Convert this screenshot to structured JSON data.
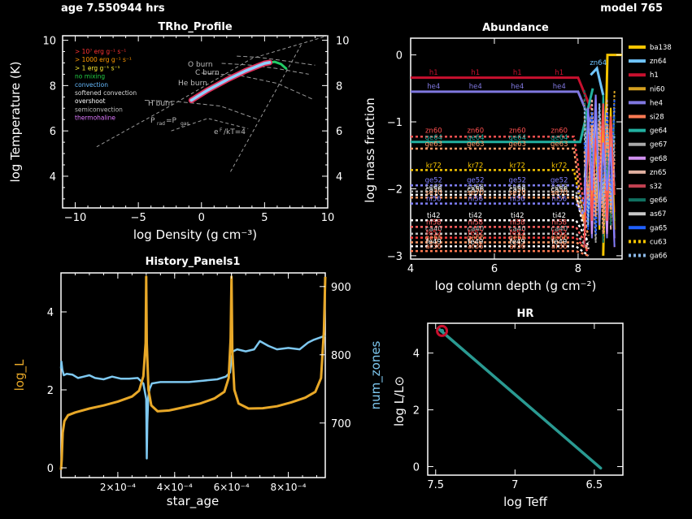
{
  "header": {
    "age_text": "age 7.550944 hrs",
    "model_text": "model 765"
  },
  "colors": {
    "bg": "#000000",
    "fg": "#ffffff",
    "gold": "#e8a828",
    "lightblue": "#7ec8f0",
    "teal": "#2a9a92",
    "crimson": "#c8102e"
  },
  "panels": {
    "trho": {
      "title": "TRho_Profile",
      "xlabel": "log Density (g cm⁻³)",
      "ylabel": "log Temperature (K)",
      "xticks": [
        "−10",
        "−5",
        "0",
        "5",
        "10"
      ],
      "yticks_left": [
        "4",
        "6",
        "8",
        "10"
      ],
      "yticks_right": [
        "4",
        "6",
        "8",
        "10"
      ],
      "legend": [
        {
          "text": "> 10⁷ erg g⁻¹ s⁻¹",
          "color": "#ff3333"
        },
        {
          "text": "> 1000 erg g⁻¹ s⁻¹",
          "color": "#ff9900"
        },
        {
          "text": "> 1 erg g⁻¹ s⁻¹",
          "color": "#ffee33"
        },
        {
          "text": "no mixing",
          "color": "#22cc44"
        },
        {
          "text": "convection",
          "color": "#66bbff"
        },
        {
          "text": "softened convection",
          "color": "#dddddd"
        },
        {
          "text": "overshoot",
          "color": "#ffffff"
        },
        {
          "text": "semiconvection",
          "color": "#bbbbbb"
        },
        {
          "text": "thermohaline",
          "color": "#dd77ff"
        }
      ],
      "burn_labels": [
        "O burn",
        "C burn",
        "He burn",
        "H burn"
      ],
      "misc_labels": [
        "P",
        "rad",
        "=P",
        "gas",
        "e",
        "F",
        "/kT=4"
      ]
    },
    "abund": {
      "title": "Abundance",
      "xlabel": "log column depth (g cm⁻²)",
      "ylabel": "log mass fraction",
      "xticks": [
        "4",
        "6",
        "8"
      ],
      "yticks": [
        "0",
        "−1",
        "−2",
        "−3"
      ],
      "legend": [
        {
          "name": "ba138",
          "color": "#f5c400",
          "style": "solid"
        },
        {
          "name": "zn64",
          "color": "#6fc4ff",
          "style": "solid"
        },
        {
          "name": "h1",
          "color": "#c8102e",
          "style": "solid"
        },
        {
          "name": "ni60",
          "color": "#d4a020",
          "style": "solid"
        },
        {
          "name": "he4",
          "color": "#8078e0",
          "style": "solid"
        },
        {
          "name": "si28",
          "color": "#ff7b53",
          "style": "solid"
        },
        {
          "name": "ge64",
          "color": "#22b0a0",
          "style": "solid"
        },
        {
          "name": "ge67",
          "color": "#a8a8a8",
          "style": "solid"
        },
        {
          "name": "ge68",
          "color": "#d090f0",
          "style": "solid"
        },
        {
          "name": "zn65",
          "color": "#e0b0a0",
          "style": "solid"
        },
        {
          "name": "s32",
          "color": "#c04050",
          "style": "solid"
        },
        {
          "name": "ge66",
          "color": "#107060",
          "style": "solid"
        },
        {
          "name": "as67",
          "color": "#c8c8c8",
          "style": "solid"
        },
        {
          "name": "ga65",
          "color": "#2060ff",
          "style": "solid"
        },
        {
          "name": "cu63",
          "color": "#f5c400",
          "style": "dotted"
        },
        {
          "name": "ga66",
          "color": "#8ab8e8",
          "style": "dotted"
        }
      ],
      "line_labels": [
        {
          "text": "h1",
          "y": -0.33,
          "color": "#c8102e"
        },
        {
          "text": "he4",
          "y": -0.54,
          "color": "#8078e0"
        },
        {
          "text": "zn60",
          "y": -1.2,
          "color": "#ff5050"
        },
        {
          "text": "ge64",
          "y": -1.3,
          "color": "#22b0a0"
        },
        {
          "text": "ge63",
          "y": -1.4,
          "color": "#ff9966"
        },
        {
          "text": "kr72",
          "y": -1.72,
          "color": "#f5c400"
        },
        {
          "text": "ge52",
          "y": -1.94,
          "color": "#8080ff"
        },
        {
          "text": "se68",
          "y": -2.04,
          "color": "#aaaaaa"
        },
        {
          "text": "ca56",
          "y": -2.08,
          "color": "#ffffff"
        },
        {
          "text": "se70",
          "y": -2.13,
          "color": "#ff9966"
        },
        {
          "text": "ni56",
          "y": -2.22,
          "color": "#8080ff"
        },
        {
          "text": "ti42",
          "y": -2.47,
          "color": "#ffffff"
        },
        {
          "text": "ni58",
          "y": -2.57,
          "color": "#ff6060"
        },
        {
          "text": "ca40",
          "y": -2.67,
          "color": "#c0c0c0"
        },
        {
          "text": "fe52",
          "y": -2.73,
          "color": "#ff4040"
        },
        {
          "text": "ge66",
          "y": -2.8,
          "color": "#ff9966"
        },
        {
          "text": "fe49",
          "y": -2.86,
          "color": "#ffffff"
        },
        {
          "text": "ar36",
          "y": -2.93,
          "color": "#ff7b53"
        }
      ],
      "label_x": [
        4.55,
        5.55,
        6.55,
        7.55
      ],
      "right_label": "zn64"
    },
    "history": {
      "title": "History_Panels1",
      "xlabel": "star_age",
      "ylabel_left": "log_L",
      "ylabel_right": "num_zones",
      "xticks": [
        "2×10⁻⁴",
        "4×10⁻⁴",
        "6×10⁻⁴",
        "8×10⁻⁴"
      ],
      "yticks_left": [
        "0",
        "2",
        "4"
      ],
      "yticks_right": [
        "700",
        "800",
        "900"
      ]
    },
    "hr": {
      "title": "HR",
      "xlabel": "log Teff",
      "ylabel": "log L/L⊙",
      "xticks": [
        "7.5",
        "7",
        "6.5"
      ],
      "yticks": [
        "0",
        "2",
        "4"
      ]
    }
  },
  "chart_data": [
    {
      "type": "line",
      "title": "TRho_Profile",
      "xlabel": "log Density (g cm⁻³)",
      "ylabel": "log Temperature (K)",
      "xlim": [
        -11,
        10
      ],
      "ylim": [
        2.6,
        10.2
      ],
      "series": [
        {
          "x": [
            -0.8,
            0.5,
            2.0,
            3.5,
            5.0,
            5.4
          ],
          "y": [
            7.35,
            7.8,
            8.25,
            8.65,
            8.98,
            9.02
          ]
        },
        {
          "x": [
            5.2,
            5.8,
            6.3,
            6.7
          ],
          "y": [
            9.0,
            9.05,
            8.95,
            8.75
          ]
        }
      ],
      "burn_lines": [
        {
          "label": "O burn",
          "x": [
            2.8,
            4.5,
            6.5,
            9.0
          ],
          "y": [
            9.3,
            9.25,
            9.1,
            8.9
          ]
        },
        {
          "label": "C burn",
          "x": [
            1.6,
            4.0,
            6.0,
            8.5
          ],
          "y": [
            8.98,
            8.9,
            8.75,
            8.5
          ]
        },
        {
          "label": "He burn",
          "x": [
            0.0,
            3.0,
            6.0,
            8.8
          ],
          "y": [
            8.55,
            8.45,
            8.1,
            7.4
          ]
        },
        {
          "label": "H burn",
          "x": [
            -4.5,
            -2.0,
            1.5,
            4.5
          ],
          "y": [
            7.35,
            7.3,
            7.1,
            6.5
          ]
        }
      ],
      "reference_lines": [
        {
          "label": "Prad=Pgas",
          "x": [
            -8.3,
            -2.0,
            4.0,
            10.0
          ],
          "y": [
            5.3,
            7.25,
            9.2,
            10.2
          ]
        },
        {
          "label": "eF/kT=4",
          "x": [
            2.3,
            5.0,
            7.9
          ],
          "y": [
            4.2,
            6.9,
            9.8
          ]
        },
        {
          "label": "",
          "x": [
            -2.4,
            0.5,
            3.7
          ],
          "y": [
            6.0,
            6.55,
            6.1
          ]
        }
      ]
    },
    {
      "type": "line",
      "title": "Abundance",
      "xlabel": "log column depth (g cm⁻²)",
      "ylabel": "log mass fraction",
      "xlim": [
        4.0,
        9.05
      ],
      "ylim": [
        -3.05,
        0.25
      ],
      "series": [
        {
          "name": "h1",
          "level": -0.34,
          "end_x": 8.0,
          "tail_y": -0.8
        },
        {
          "name": "he4",
          "level": -0.55,
          "end_x": 8.0,
          "tail_y": -1.0
        },
        {
          "name": "zn60",
          "level": -1.22,
          "end_x": 7.9,
          "tail_y": -2.5
        },
        {
          "name": "ge64",
          "level": -1.3,
          "end_x": 8.05,
          "tail_y": -0.5
        },
        {
          "name": "ge63",
          "level": -1.4,
          "end_x": 7.9,
          "tail_y": -2.8
        },
        {
          "name": "kr72",
          "level": -1.72,
          "end_x": 7.9,
          "tail_y": -2.6
        },
        {
          "name": "ge52",
          "level": -1.95,
          "end_x": 7.95,
          "tail_y": -2.4
        },
        {
          "name": "se68",
          "level": -2.04,
          "end_x": 7.95,
          "tail_y": -2.6
        },
        {
          "name": "ca56",
          "level": -2.09,
          "end_x": 7.95,
          "tail_y": -2.9
        },
        {
          "name": "se70",
          "level": -2.13,
          "end_x": 7.95,
          "tail_y": -2.7
        },
        {
          "name": "ni56",
          "level": -2.22,
          "end_x": 7.95,
          "tail_y": -2.5
        },
        {
          "name": "ti42",
          "level": -2.47,
          "end_x": 7.95,
          "tail_y": -2.8
        },
        {
          "name": "ni58",
          "level": -2.57,
          "end_x": 7.95,
          "tail_y": -2.9
        },
        {
          "name": "ca40",
          "level": -2.67,
          "end_x": 7.95,
          "tail_y": -2.9
        },
        {
          "name": "fe52",
          "level": -2.73,
          "end_x": 7.95,
          "tail_y": -2.95
        },
        {
          "name": "ge66",
          "level": -2.8,
          "end_x": 7.95,
          "tail_y": -2.9
        },
        {
          "name": "fe49",
          "level": -2.86,
          "end_x": 7.95,
          "tail_y": -3.0
        },
        {
          "name": "ar36",
          "level": -2.93,
          "end_x": 7.95,
          "tail_y": -3.0
        },
        {
          "name": "zn64",
          "level": null,
          "spike_x": [
            8.3,
            8.45,
            8.6
          ],
          "spike_y": [
            -0.3,
            -0.2,
            -0.6
          ]
        },
        {
          "name": "ba138",
          "level": null,
          "spike_x": [
            8.6,
            8.7,
            9.05
          ],
          "spike_y": [
            -3.0,
            0.0,
            0.0
          ]
        }
      ]
    },
    {
      "type": "line",
      "title": "History_Panels1",
      "xlabel": "star_age",
      "xlim": [
        0.0,
        0.00093
      ],
      "series": [
        {
          "name": "log_L",
          "axis": "left",
          "ylim": [
            -0.25,
            5.0
          ],
          "x": [
            0.0,
            2.5e-06,
            6e-06,
            1.2e-05,
            2.5e-05,
            5e-05,
            0.0001,
            0.00015,
            0.0002,
            0.00025,
            0.000275,
            0.00029,
            0.000298,
            0.0003,
            0.000302,
            0.000308,
            0.000318,
            0.00034,
            0.00038,
            0.00043,
            0.00049,
            0.00054,
            0.000575,
            0.00059,
            0.000597,
            0.0006,
            0.000603,
            0.00061,
            0.000625,
            0.00066,
            0.00071,
            0.00076,
            0.00081,
            0.00086,
            0.000895,
            0.000915,
            0.000925,
            0.00093
          ],
          "y": [
            -0.05,
            0.2,
            0.9,
            1.2,
            1.35,
            1.42,
            1.52,
            1.6,
            1.7,
            1.83,
            1.98,
            2.35,
            3.2,
            4.9,
            3.2,
            2.0,
            1.6,
            1.45,
            1.47,
            1.55,
            1.65,
            1.78,
            1.95,
            2.3,
            3.3,
            4.9,
            3.0,
            2.0,
            1.65,
            1.52,
            1.53,
            1.58,
            1.68,
            1.8,
            1.95,
            2.3,
            3.5,
            4.9
          ]
        },
        {
          "name": "num_zones",
          "axis": "right",
          "ylim": [
            620,
            920
          ],
          "x": [
            0.0,
            1.5e-06,
            5e-06,
            1e-05,
            2e-05,
            4e-05,
            6e-05,
            8e-05,
            0.0001,
            0.00012,
            0.00015,
            0.00018,
            0.00021,
            0.00024,
            0.00027,
            0.00029,
            0.0003,
            0.000302,
            0.000304,
            0.000307,
            0.000312,
            0.00032,
            0.00035,
            0.0004,
            0.00045,
            0.0005,
            0.00055,
            0.00058,
            0.000595,
            0.0006,
            0.000605,
            0.00062,
            0.00065,
            0.00068,
            0.0007,
            0.00073,
            0.00076,
            0.0008,
            0.00084,
            0.00087,
            0.00089,
            0.00091,
            0.00093
          ],
          "y": [
            780,
            790,
            778,
            770,
            772,
            771,
            766,
            768,
            770,
            766,
            764,
            768,
            765,
            765,
            766,
            758,
            735,
            648,
            700,
            738,
            750,
            758,
            760,
            760,
            760,
            762,
            764,
            768,
            774,
            795,
            805,
            808,
            805,
            808,
            820,
            813,
            808,
            810,
            808,
            818,
            822,
            825,
            828
          ]
        }
      ]
    },
    {
      "type": "line",
      "title": "HR",
      "xlabel": "log Teff",
      "ylabel": "log L/L⊙",
      "xlim": [
        7.55,
        6.32
      ],
      "ylim": [
        -0.3,
        5.05
      ],
      "series": [
        {
          "x": [
            7.48,
            6.46
          ],
          "y": [
            4.85,
            -0.05
          ]
        }
      ],
      "marker": {
        "x": [
          7.46
        ],
        "y": [
          4.78
        ]
      }
    }
  ]
}
